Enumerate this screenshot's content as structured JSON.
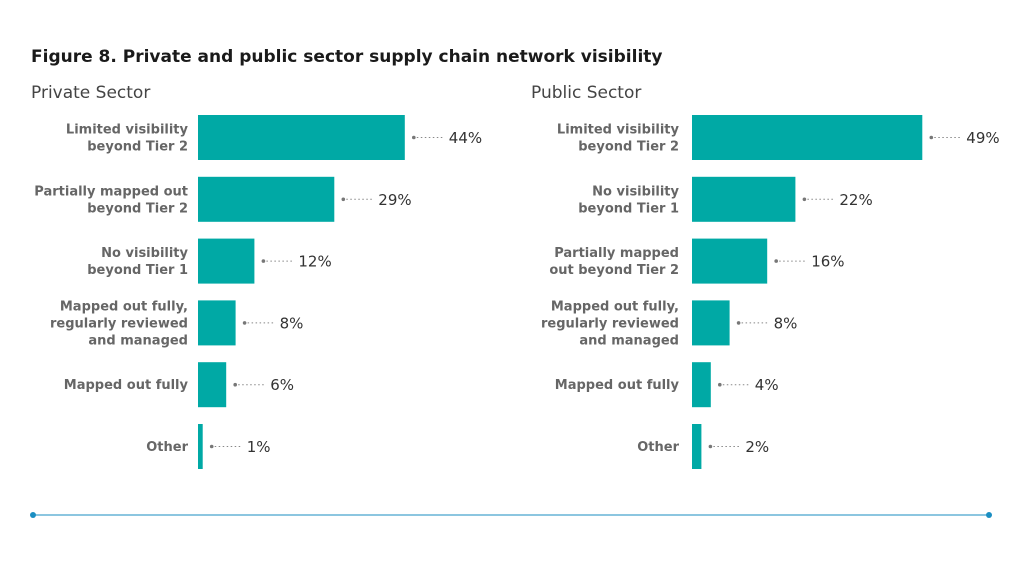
{
  "figure_title": "Figure 8. Private and public sector supply chain network visibility",
  "accent_color": "#00a9a5",
  "rule_color": "#1a8ec2",
  "chart_data": [
    {
      "type": "bar",
      "orientation": "horizontal",
      "title": "Private Sector",
      "categories": [
        [
          "Limited visibility",
          "beyond Tier 2"
        ],
        [
          "Partially mapped out",
          "beyond Tier 2"
        ],
        [
          "No visibility",
          "beyond Tier 1"
        ],
        [
          "Mapped out fully,",
          "regularly reviewed",
          "and managed"
        ],
        [
          "Mapped out fully"
        ],
        [
          "Other"
        ]
      ],
      "values": [
        44,
        29,
        12,
        8,
        6,
        1
      ],
      "value_labels": [
        "44%",
        "29%",
        "12%",
        "8%",
        "6%",
        "1%"
      ],
      "unit": "%",
      "xlim": [
        0,
        50
      ]
    },
    {
      "type": "bar",
      "orientation": "horizontal",
      "title": "Public Sector",
      "categories": [
        [
          "Limited visibility",
          "beyond Tier 2"
        ],
        [
          "No visibility",
          "beyond Tier 1"
        ],
        [
          "Partially mapped",
          "out beyond Tier 2"
        ],
        [
          "Mapped out fully,",
          "regularly reviewed",
          "and managed"
        ],
        [
          "Mapped out fully"
        ],
        [
          "Other"
        ]
      ],
      "values": [
        49,
        22,
        16,
        8,
        4,
        2
      ],
      "value_labels": [
        "49%",
        "22%",
        "16%",
        "8%",
        "4%",
        "2%"
      ],
      "unit": "%",
      "xlim": [
        0,
        50
      ]
    }
  ]
}
